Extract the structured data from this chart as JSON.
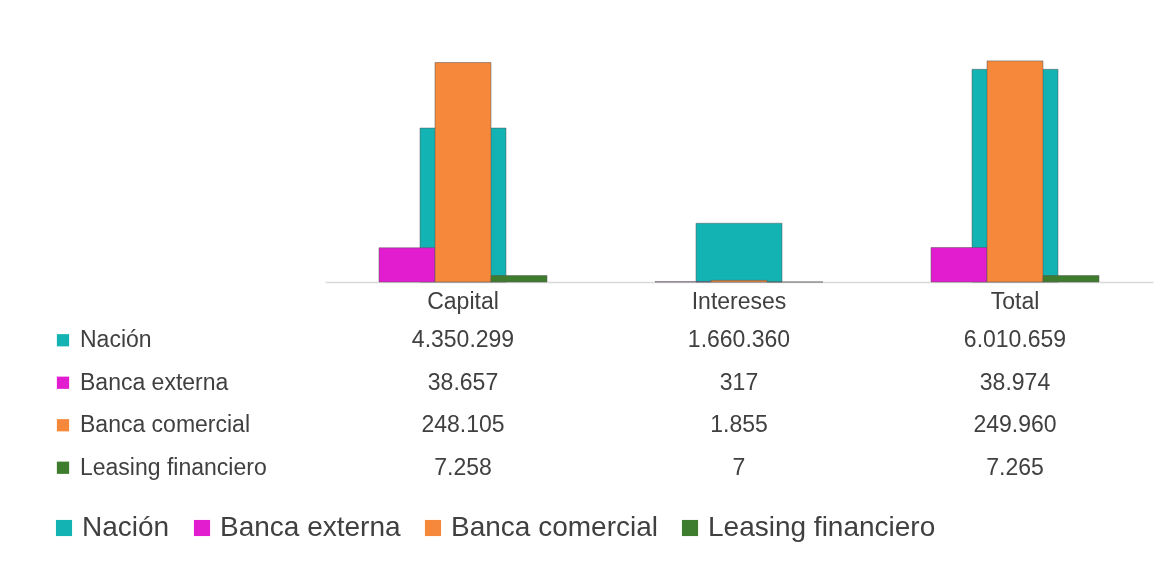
{
  "chart_data": {
    "type": "bar",
    "categories": [
      "Capital",
      "Intereses",
      "Total"
    ],
    "series": [
      {
        "name": "Nación",
        "color": "#14b3b3",
        "values": [
          4350299,
          1660360,
          6010659
        ],
        "value_labels": [
          "4.350.299",
          "1.660.360",
          "6.010.659"
        ]
      },
      {
        "name": "Banca externa",
        "color": "#e21dd0",
        "values": [
          38657,
          317,
          38974
        ],
        "value_labels": [
          "38.657",
          "317",
          "38.974"
        ],
        "axis": "y2"
      },
      {
        "name": "Banca comercial",
        "color": "#f5883a",
        "values": [
          248105,
          1855,
          249960
        ],
        "value_labels": [
          "248.105",
          "1.855",
          "249.960"
        ],
        "axis": "y2"
      },
      {
        "name": "Leasing financiero",
        "color": "#3f7d2e",
        "values": [
          7258,
          7,
          7265
        ],
        "value_labels": [
          "7.258",
          "7",
          "7.265"
        ],
        "axis": "y2"
      }
    ],
    "legend": "bottom",
    "tick_labels": "x"
  }
}
